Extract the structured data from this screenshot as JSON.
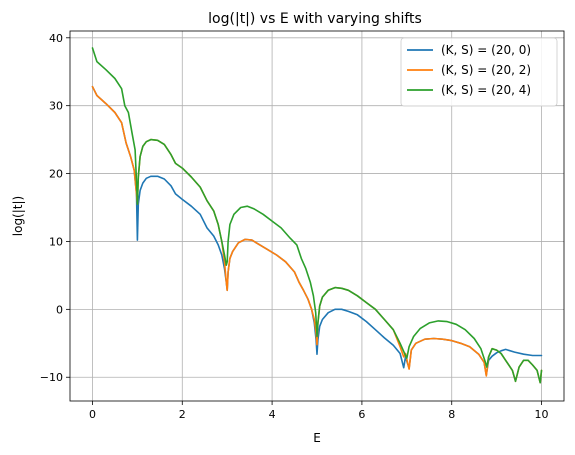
{
  "chart_data": {
    "type": "line",
    "title": "log(|t|) vs E with varying shifts",
    "xlabel": "E",
    "ylabel": "log(|t|)",
    "xlim": [
      -0.5,
      10.5
    ],
    "ylim": [
      -13.5,
      41
    ],
    "xticks": [
      0,
      2,
      4,
      6,
      8,
      10
    ],
    "yticks": [
      -10,
      0,
      10,
      20,
      30,
      40
    ],
    "grid": true,
    "legend": "top-right",
    "series": [
      {
        "name": "(K, S) = (20, 0)",
        "color": "#1f77b4",
        "points": [
          [
            0,
            32.8
          ],
          [
            0.1,
            31.5
          ],
          [
            0.3,
            30.3
          ],
          [
            0.5,
            29.0
          ],
          [
            0.65,
            27.5
          ],
          [
            0.75,
            24.5
          ],
          [
            0.85,
            22.5
          ],
          [
            0.93,
            20.5
          ],
          [
            0.98,
            17
          ],
          [
            1.0,
            10.2
          ],
          [
            1.02,
            15.5
          ],
          [
            1.06,
            17.5
          ],
          [
            1.12,
            18.6
          ],
          [
            1.2,
            19.3
          ],
          [
            1.3,
            19.6
          ],
          [
            1.45,
            19.6
          ],
          [
            1.6,
            19.2
          ],
          [
            1.75,
            18.2
          ],
          [
            1.85,
            17
          ],
          [
            2.0,
            16.2
          ],
          [
            2.2,
            15.2
          ],
          [
            2.4,
            14.0
          ],
          [
            2.55,
            12.0
          ],
          [
            2.7,
            10.8
          ],
          [
            2.8,
            9.5
          ],
          [
            2.88,
            8.0
          ],
          [
            2.94,
            6.0
          ],
          [
            2.98,
            4.0
          ],
          [
            3.0,
            2.8
          ],
          [
            3.02,
            5.5
          ],
          [
            3.06,
            7.5
          ],
          [
            3.12,
            8.5
          ],
          [
            3.25,
            9.8
          ],
          [
            3.4,
            10.3
          ],
          [
            3.55,
            10.2
          ],
          [
            3.7,
            9.6
          ],
          [
            3.9,
            8.8
          ],
          [
            4.1,
            8.0
          ],
          [
            4.3,
            7.0
          ],
          [
            4.5,
            5.5
          ],
          [
            4.6,
            4.0
          ],
          [
            4.7,
            2.8
          ],
          [
            4.8,
            1.5
          ],
          [
            4.88,
            0
          ],
          [
            4.94,
            -2
          ],
          [
            4.98,
            -4.5
          ],
          [
            5.0,
            -6.6
          ],
          [
            5.02,
            -4.5
          ],
          [
            5.06,
            -2.5
          ],
          [
            5.12,
            -1.5
          ],
          [
            5.25,
            -0.5
          ],
          [
            5.4,
            0
          ],
          [
            5.55,
            0
          ],
          [
            5.7,
            -0.3
          ],
          [
            5.9,
            -0.8
          ],
          [
            6.1,
            -1.8
          ],
          [
            6.3,
            -3.0
          ],
          [
            6.5,
            -4.2
          ],
          [
            6.7,
            -5.3
          ],
          [
            6.85,
            -6.5
          ],
          [
            6.93,
            -8.6
          ],
          [
            6.97,
            -7.0
          ],
          [
            7.05,
            -8.7
          ],
          [
            7.1,
            -6.0
          ],
          [
            7.2,
            -5.0
          ],
          [
            7.4,
            -4.4
          ],
          [
            7.6,
            -4.3
          ],
          [
            7.8,
            -4.4
          ],
          [
            8.0,
            -4.6
          ],
          [
            8.2,
            -5.0
          ],
          [
            8.4,
            -5.5
          ],
          [
            8.6,
            -6.6
          ],
          [
            8.72,
            -7.8
          ],
          [
            8.77,
            -9.7
          ],
          [
            8.82,
            -7.5
          ],
          [
            8.9,
            -6.9
          ],
          [
            9.0,
            -6.4
          ],
          [
            9.1,
            -6.1
          ],
          [
            9.2,
            -5.9
          ],
          [
            9.4,
            -6.3
          ],
          [
            9.6,
            -6.6
          ],
          [
            9.8,
            -6.8
          ],
          [
            10.0,
            -6.8
          ]
        ]
      },
      {
        "name": "(K, S) = (20, 2)",
        "color": "#ff7f0e",
        "points": [
          [
            0,
            32.8
          ],
          [
            0.1,
            31.5
          ],
          [
            0.3,
            30.3
          ],
          [
            0.5,
            29.0
          ],
          [
            0.65,
            27.5
          ],
          [
            0.75,
            24.5
          ],
          [
            0.85,
            22.5
          ],
          [
            0.93,
            20.5
          ],
          [
            0.98,
            17
          ],
          [
            1.0,
            15.5
          ],
          [
            1.02,
            19.5
          ],
          [
            1.06,
            22.5
          ],
          [
            1.12,
            24.0
          ],
          [
            1.2,
            24.7
          ],
          [
            1.3,
            25.0
          ],
          [
            1.45,
            24.9
          ],
          [
            1.6,
            24.3
          ],
          [
            1.75,
            22.8
          ],
          [
            1.85,
            21.5
          ],
          [
            2.0,
            20.8
          ],
          [
            2.2,
            19.5
          ],
          [
            2.4,
            18.0
          ],
          [
            2.55,
            16.0
          ],
          [
            2.7,
            14.5
          ],
          [
            2.8,
            12.5
          ],
          [
            2.88,
            10.0
          ],
          [
            2.94,
            7.0
          ],
          [
            2.98,
            4.0
          ],
          [
            3.0,
            2.8
          ],
          [
            3.02,
            5.5
          ],
          [
            3.06,
            7.5
          ],
          [
            3.12,
            8.5
          ],
          [
            3.25,
            9.8
          ],
          [
            3.4,
            10.3
          ],
          [
            3.55,
            10.2
          ],
          [
            3.7,
            9.6
          ],
          [
            3.9,
            8.8
          ],
          [
            4.1,
            8.0
          ],
          [
            4.3,
            7.0
          ],
          [
            4.5,
            5.5
          ],
          [
            4.6,
            4.0
          ],
          [
            4.7,
            2.8
          ],
          [
            4.8,
            1.5
          ],
          [
            4.88,
            0
          ],
          [
            4.94,
            -1.5
          ],
          [
            4.98,
            -3.5
          ],
          [
            5.0,
            -5.2
          ],
          [
            5.02,
            -2.0
          ],
          [
            5.06,
            0.5
          ],
          [
            5.12,
            1.8
          ],
          [
            5.25,
            2.8
          ],
          [
            5.4,
            3.2
          ],
          [
            5.55,
            3.1
          ],
          [
            5.7,
            2.8
          ],
          [
            5.9,
            2.0
          ],
          [
            6.1,
            1.0
          ],
          [
            6.3,
            0
          ],
          [
            6.5,
            -1.5
          ],
          [
            6.7,
            -3.0
          ],
          [
            6.85,
            -5.5
          ],
          [
            6.93,
            -7.0
          ],
          [
            6.97,
            -6.5
          ],
          [
            7.05,
            -8.8
          ],
          [
            7.1,
            -6.0
          ],
          [
            7.2,
            -5.0
          ],
          [
            7.4,
            -4.4
          ],
          [
            7.6,
            -4.3
          ],
          [
            7.8,
            -4.4
          ],
          [
            8.0,
            -4.6
          ],
          [
            8.2,
            -5.0
          ],
          [
            8.4,
            -5.5
          ],
          [
            8.6,
            -6.6
          ],
          [
            8.72,
            -7.8
          ],
          [
            8.77,
            -9.8
          ],
          [
            8.82,
            -7.0
          ],
          [
            8.9,
            -5.8
          ],
          [
            9.0,
            -6.0
          ],
          [
            9.1,
            -6.5
          ],
          [
            9.2,
            -7.5
          ],
          [
            9.35,
            -9.0
          ],
          [
            9.42,
            -10.6
          ],
          [
            9.5,
            -8.5
          ],
          [
            9.6,
            -7.5
          ],
          [
            9.7,
            -7.5
          ],
          [
            9.8,
            -8.2
          ],
          [
            9.9,
            -9.0
          ],
          [
            9.97,
            -10.8
          ],
          [
            10.0,
            -9.0
          ]
        ]
      },
      {
        "name": "(K, S) = (20, 4)",
        "color": "#2ca02c",
        "points": [
          [
            0,
            38.5
          ],
          [
            0.1,
            36.5
          ],
          [
            0.3,
            35.3
          ],
          [
            0.5,
            34.0
          ],
          [
            0.65,
            32.5
          ],
          [
            0.72,
            30.0
          ],
          [
            0.8,
            29.0
          ],
          [
            0.88,
            26.0
          ],
          [
            0.95,
            23.5
          ],
          [
            0.99,
            17.5
          ],
          [
            1.0,
            15.5
          ],
          [
            1.02,
            19.5
          ],
          [
            1.06,
            22.5
          ],
          [
            1.12,
            24.0
          ],
          [
            1.2,
            24.7
          ],
          [
            1.3,
            25.0
          ],
          [
            1.45,
            24.9
          ],
          [
            1.6,
            24.3
          ],
          [
            1.75,
            22.8
          ],
          [
            1.85,
            21.5
          ],
          [
            2.0,
            20.8
          ],
          [
            2.2,
            19.5
          ],
          [
            2.4,
            18.0
          ],
          [
            2.55,
            16.0
          ],
          [
            2.7,
            14.5
          ],
          [
            2.8,
            12.5
          ],
          [
            2.88,
            10.0
          ],
          [
            2.94,
            8.0
          ],
          [
            2.98,
            6.5
          ],
          [
            3.0,
            7.0
          ],
          [
            3.02,
            10.0
          ],
          [
            3.06,
            12.5
          ],
          [
            3.15,
            14.0
          ],
          [
            3.3,
            15.0
          ],
          [
            3.45,
            15.2
          ],
          [
            3.6,
            14.8
          ],
          [
            3.8,
            14.0
          ],
          [
            4.0,
            13.0
          ],
          [
            4.2,
            12.0
          ],
          [
            4.4,
            10.5
          ],
          [
            4.55,
            9.5
          ],
          [
            4.65,
            7.5
          ],
          [
            4.75,
            6.0
          ],
          [
            4.85,
            4.0
          ],
          [
            4.92,
            2.0
          ],
          [
            4.97,
            -0.5
          ],
          [
            5.0,
            -4.0
          ],
          [
            5.02,
            -2.0
          ],
          [
            5.06,
            0.5
          ],
          [
            5.12,
            1.8
          ],
          [
            5.25,
            2.8
          ],
          [
            5.4,
            3.2
          ],
          [
            5.55,
            3.1
          ],
          [
            5.7,
            2.8
          ],
          [
            5.9,
            2.0
          ],
          [
            6.1,
            1.0
          ],
          [
            6.3,
            0
          ],
          [
            6.5,
            -1.5
          ],
          [
            6.7,
            -3.0
          ],
          [
            6.85,
            -5.0
          ],
          [
            6.95,
            -6.5
          ],
          [
            7.0,
            -7.2
          ],
          [
            7.05,
            -5.5
          ],
          [
            7.15,
            -4.0
          ],
          [
            7.3,
            -2.8
          ],
          [
            7.5,
            -2.0
          ],
          [
            7.7,
            -1.7
          ],
          [
            7.9,
            -1.8
          ],
          [
            8.1,
            -2.2
          ],
          [
            8.3,
            -3.0
          ],
          [
            8.5,
            -4.3
          ],
          [
            8.65,
            -5.8
          ],
          [
            8.75,
            -7.8
          ],
          [
            8.78,
            -8.5
          ],
          [
            8.82,
            -7.0
          ],
          [
            8.9,
            -5.8
          ],
          [
            9.0,
            -6.0
          ],
          [
            9.1,
            -6.5
          ],
          [
            9.2,
            -7.5
          ],
          [
            9.35,
            -9.0
          ],
          [
            9.42,
            -10.6
          ],
          [
            9.5,
            -8.5
          ],
          [
            9.6,
            -7.5
          ],
          [
            9.7,
            -7.5
          ],
          [
            9.8,
            -8.2
          ],
          [
            9.9,
            -9.0
          ],
          [
            9.97,
            -10.8
          ],
          [
            10.0,
            -9.0
          ]
        ]
      }
    ]
  }
}
